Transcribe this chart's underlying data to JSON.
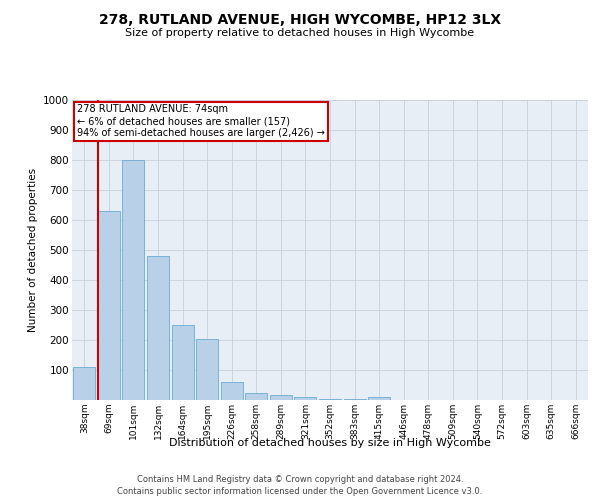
{
  "title": "278, RUTLAND AVENUE, HIGH WYCOMBE, HP12 3LX",
  "subtitle": "Size of property relative to detached houses in High Wycombe",
  "xlabel": "Distribution of detached houses by size in High Wycombe",
  "ylabel": "Number of detached properties",
  "categories": [
    "38sqm",
    "69sqm",
    "101sqm",
    "132sqm",
    "164sqm",
    "195sqm",
    "226sqm",
    "258sqm",
    "289sqm",
    "321sqm",
    "352sqm",
    "383sqm",
    "415sqm",
    "446sqm",
    "478sqm",
    "509sqm",
    "540sqm",
    "572sqm",
    "603sqm",
    "635sqm",
    "666sqm"
  ],
  "values": [
    110,
    630,
    800,
    480,
    250,
    205,
    60,
    25,
    18,
    10,
    5,
    5,
    10,
    0,
    0,
    0,
    0,
    0,
    0,
    0,
    0
  ],
  "bar_color": "#b8d0e8",
  "bar_edge_color": "#6aaad4",
  "ylim": [
    0,
    1000
  ],
  "yticks": [
    0,
    100,
    200,
    300,
    400,
    500,
    600,
    700,
    800,
    900,
    1000
  ],
  "property_label": "278 RUTLAND AVENUE: 74sqm",
  "annotation_line1": "← 6% of detached houses are smaller (157)",
  "annotation_line2": "94% of semi-detached houses are larger (2,426) →",
  "annotation_box_color": "#cc0000",
  "vline_color": "#cc0000",
  "background_color": "#ffffff",
  "plot_bg_color": "#e8eef5",
  "grid_color": "#c8d0dc",
  "footnote1": "Contains HM Land Registry data © Crown copyright and database right 2024.",
  "footnote2": "Contains public sector information licensed under the Open Government Licence v3.0."
}
